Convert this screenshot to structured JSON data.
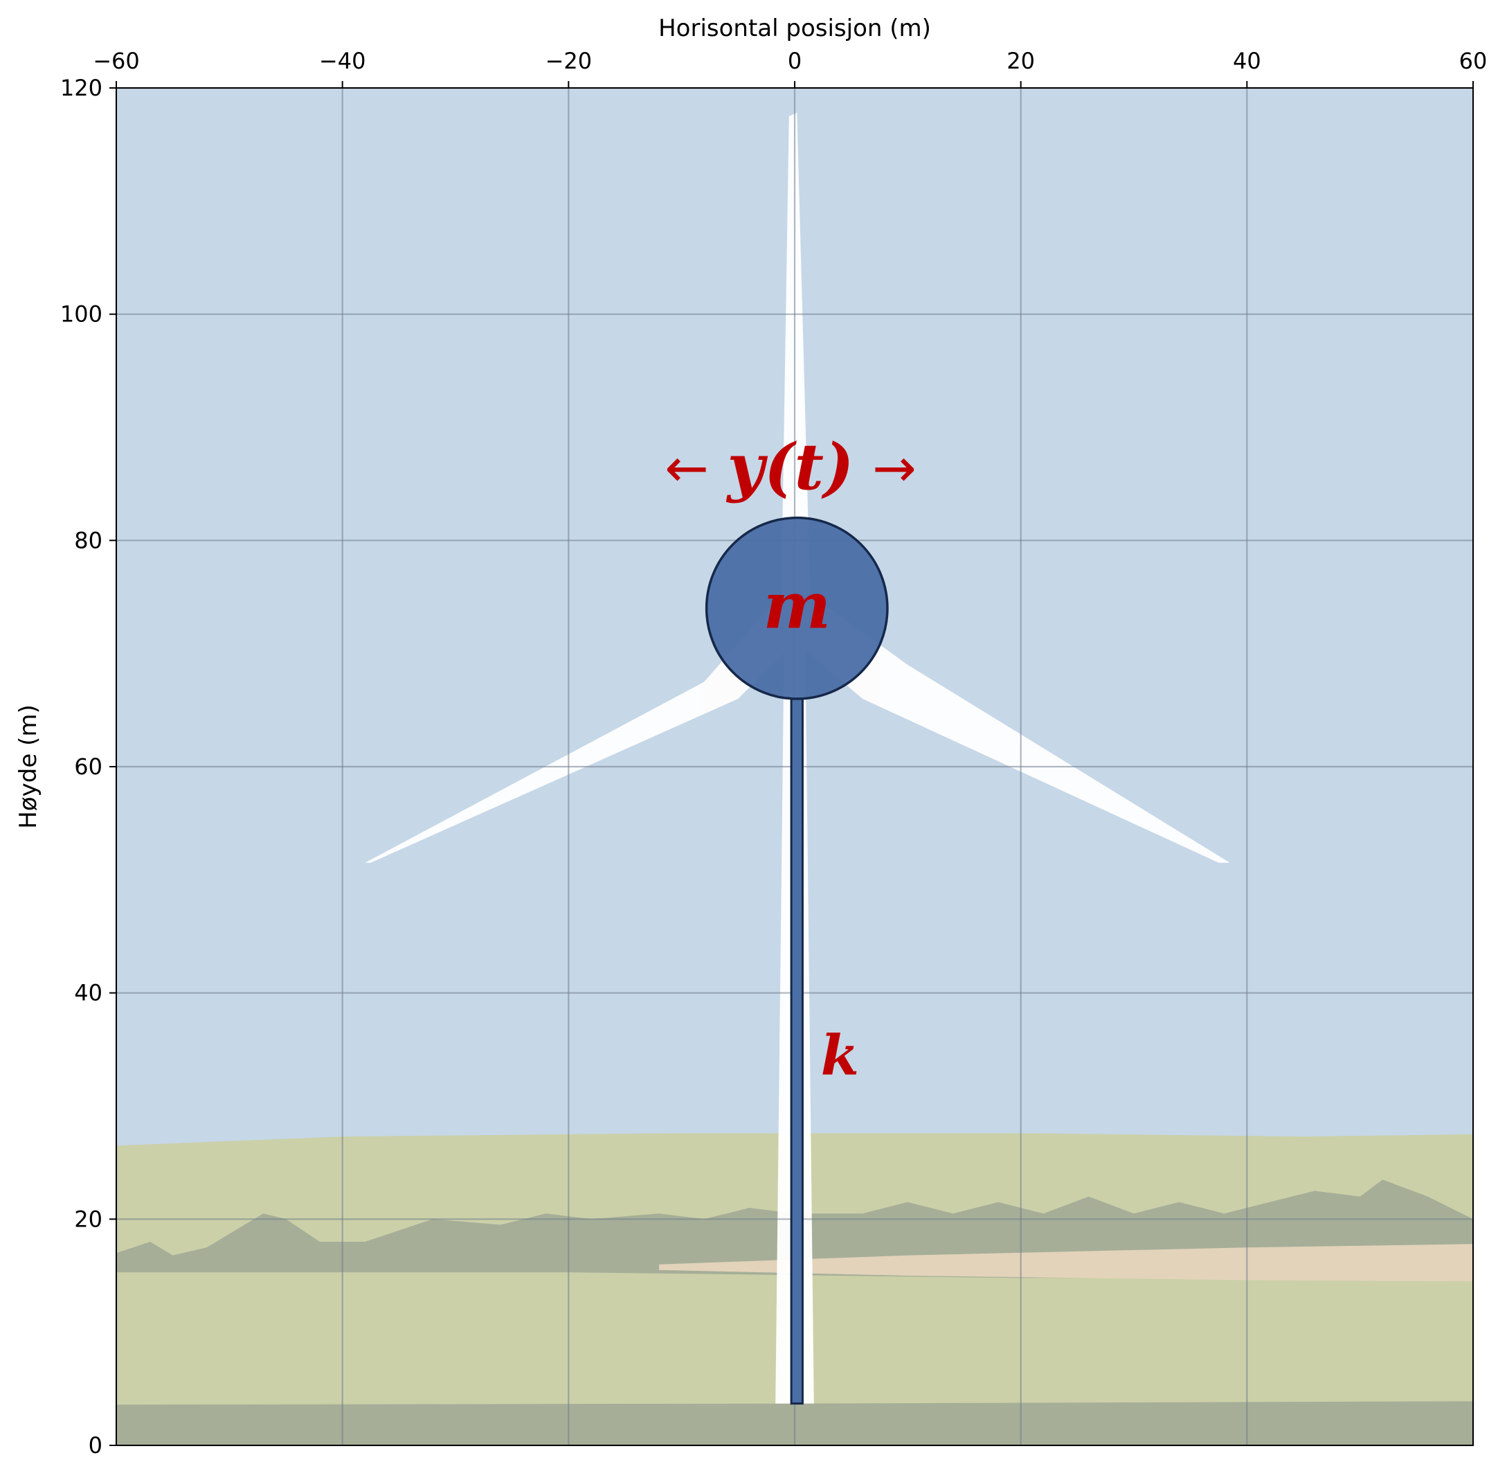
{
  "chart_data": {
    "type": "diagram",
    "xlabel": "Horisontal posisjon (m)",
    "ylabel": "Høyde (m)",
    "xlim": [
      -60,
      60
    ],
    "ylim": [
      0,
      120
    ],
    "xticks": [
      -60,
      -40,
      -20,
      0,
      20,
      40,
      60
    ],
    "xtick_labels": [
      "−60",
      "−40",
      "−20",
      "0",
      "20",
      "40",
      "60"
    ],
    "yticks": [
      0,
      20,
      40,
      60,
      80,
      100,
      120
    ],
    "ytick_labels": [
      "0",
      "20",
      "40",
      "60",
      "80",
      "100",
      "120"
    ],
    "x_axis_position": "top",
    "grid": true,
    "mass": {
      "label": "m",
      "center": [
        0.2,
        74
      ],
      "radius": 8
    },
    "spring": {
      "label": "k",
      "x": 0.2,
      "y_bottom": 3.7,
      "y_top": 66
    },
    "displacement_label": {
      "left_arrow": "←",
      "text": "y(t)",
      "right_arrow": "→"
    },
    "background": {
      "sky_color": "#c6d7e7",
      "field_color": "#cbd0a8",
      "dark_band_color": "#a6ae98",
      "path_color": "#e2d3ba",
      "blade_color": "#ffffff"
    },
    "colors": {
      "mass_fill": "#4a6ea6",
      "mass_stroke": "#16284a",
      "label_color": "#c00000"
    }
  }
}
